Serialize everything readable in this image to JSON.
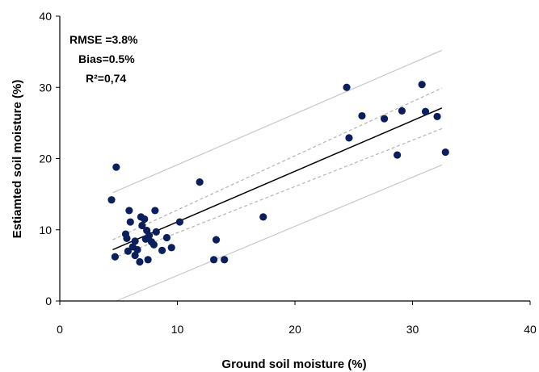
{
  "chart_data": {
    "type": "scatter",
    "xlabel": "Ground soil moisture (%)",
    "ylabel": "Estiamted soil moisture (%)",
    "xlim": [
      0,
      40
    ],
    "ylim": [
      0,
      40
    ],
    "xticks": [
      0,
      10,
      20,
      30,
      40
    ],
    "yticks": [
      0,
      10,
      20,
      30,
      40
    ],
    "grid": false,
    "annotations": [
      "RMSE =3.8%",
      "Bias=0.5%",
      "R²=0,74"
    ],
    "points": [
      {
        "x": 4.4,
        "y": 14.2
      },
      {
        "x": 4.8,
        "y": 18.8
      },
      {
        "x": 4.7,
        "y": 6.2
      },
      {
        "x": 5.6,
        "y": 9.4
      },
      {
        "x": 5.7,
        "y": 8.8
      },
      {
        "x": 5.9,
        "y": 12.7
      },
      {
        "x": 6.0,
        "y": 11.1
      },
      {
        "x": 5.8,
        "y": 7.0
      },
      {
        "x": 6.2,
        "y": 7.6
      },
      {
        "x": 6.4,
        "y": 8.4
      },
      {
        "x": 6.4,
        "y": 6.4
      },
      {
        "x": 6.6,
        "y": 7.2
      },
      {
        "x": 6.8,
        "y": 5.5
      },
      {
        "x": 6.9,
        "y": 11.8
      },
      {
        "x": 7.0,
        "y": 10.6
      },
      {
        "x": 7.2,
        "y": 11.5
      },
      {
        "x": 7.4,
        "y": 9.9
      },
      {
        "x": 7.5,
        "y": 5.8
      },
      {
        "x": 7.6,
        "y": 9.2
      },
      {
        "x": 7.8,
        "y": 8.3
      },
      {
        "x": 7.3,
        "y": 8.7
      },
      {
        "x": 8.1,
        "y": 12.7
      },
      {
        "x": 8.2,
        "y": 9.7
      },
      {
        "x": 8.0,
        "y": 7.9
      },
      {
        "x": 8.7,
        "y": 7.1
      },
      {
        "x": 9.1,
        "y": 8.9
      },
      {
        "x": 9.5,
        "y": 7.5
      },
      {
        "x": 10.2,
        "y": 11.1
      },
      {
        "x": 11.9,
        "y": 16.7
      },
      {
        "x": 13.1,
        "y": 5.8
      },
      {
        "x": 13.3,
        "y": 8.6
      },
      {
        "x": 14.0,
        "y": 5.8
      },
      {
        "x": 17.3,
        "y": 11.8
      },
      {
        "x": 24.4,
        "y": 30.0
      },
      {
        "x": 24.6,
        "y": 22.9
      },
      {
        "x": 25.7,
        "y": 26.0
      },
      {
        "x": 27.6,
        "y": 25.6
      },
      {
        "x": 28.7,
        "y": 20.5
      },
      {
        "x": 29.1,
        "y": 26.7
      },
      {
        "x": 30.8,
        "y": 30.4
      },
      {
        "x": 31.1,
        "y": 26.6
      },
      {
        "x": 32.1,
        "y": 25.9
      },
      {
        "x": 32.8,
        "y": 20.9
      }
    ],
    "lines": [
      {
        "role": "regression",
        "style": "solid",
        "color": "#000000",
        "points": [
          [
            4.5,
            7.2
          ],
          [
            32.5,
            27.1
          ]
        ]
      },
      {
        "role": "confidence-upper",
        "style": "dashed",
        "color": "#b3b3b3",
        "points": [
          [
            4.5,
            8.6
          ],
          [
            32.5,
            29.9
          ]
        ]
      },
      {
        "role": "confidence-lower",
        "style": "dashed",
        "color": "#b3b3b3",
        "points": [
          [
            4.5,
            6.0
          ],
          [
            32.5,
            24.2
          ]
        ]
      },
      {
        "role": "prediction-upper",
        "style": "solid",
        "color": "#c8c8c8",
        "points": [
          [
            4.5,
            15.2
          ],
          [
            32.5,
            35.2
          ]
        ]
      },
      {
        "role": "prediction-lower",
        "style": "solid",
        "color": "#c8c8c8",
        "points": [
          [
            4.8,
            0.0
          ],
          [
            32.5,
            19.1
          ]
        ]
      }
    ],
    "colors": {
      "points": "#0b1f5c",
      "axes": "#000000"
    }
  }
}
